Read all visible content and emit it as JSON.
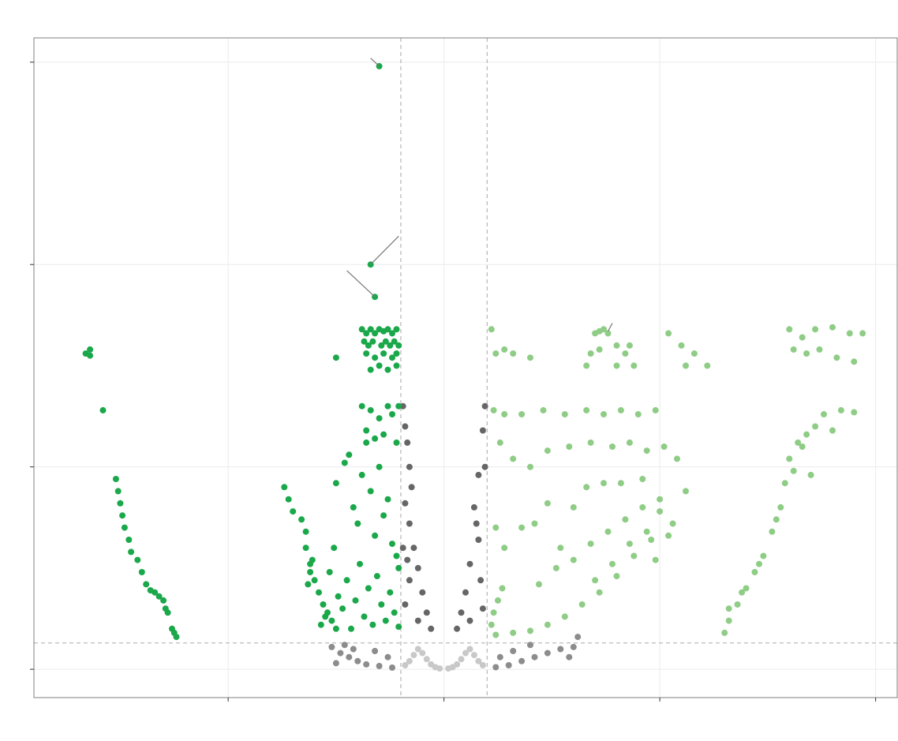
{
  "chart_data": {
    "type": "scatter",
    "title": "",
    "xlabel": "",
    "ylabel": "",
    "xlim": [
      -9.5,
      10.5
    ],
    "ylim": [
      -0.7,
      15.6
    ],
    "x_ticks": [
      -5,
      0,
      5,
      10
    ],
    "y_ticks": [
      0,
      5,
      10,
      15
    ],
    "grid": true,
    "legend": "none",
    "thresholds": {
      "x": [
        -1,
        1
      ],
      "y": 0.65
    },
    "colors": {
      "down_significant": "#1aa84a",
      "up_significant": "#8fcd86",
      "fold_only": "#666666",
      "p_only": "#8c8c8c",
      "not_significant": "#c8c8c8",
      "threshold_line": "#bbbbbb",
      "label_segment": "#777777",
      "grid": "#ebebeb",
      "panel_border": "#7f7f7f"
    },
    "series": [
      {
        "group": "down_significant",
        "points": [
          [
            -8.3,
            7.8
          ],
          [
            -8.2,
            7.9
          ],
          [
            -8.2,
            7.75
          ],
          [
            -7.9,
            6.4
          ],
          [
            -7.6,
            4.7
          ],
          [
            -7.55,
            4.4
          ],
          [
            -7.5,
            4.1
          ],
          [
            -7.45,
            3.8
          ],
          [
            -7.4,
            3.5
          ],
          [
            -7.3,
            3.2
          ],
          [
            -7.25,
            2.9
          ],
          [
            -7.1,
            2.7
          ],
          [
            -7.0,
            2.4
          ],
          [
            -6.9,
            2.1
          ],
          [
            -6.8,
            1.95
          ],
          [
            -6.7,
            1.9
          ],
          [
            -6.6,
            1.8
          ],
          [
            -6.5,
            1.7
          ],
          [
            -6.45,
            1.5
          ],
          [
            -6.4,
            1.4
          ],
          [
            -6.3,
            1.0
          ],
          [
            -6.25,
            0.9
          ],
          [
            -6.2,
            0.8
          ],
          [
            -3.7,
            4.5
          ],
          [
            -3.6,
            4.2
          ],
          [
            -3.5,
            3.9
          ],
          [
            -3.3,
            3.7
          ],
          [
            -3.2,
            3.4
          ],
          [
            -3.2,
            3.0
          ],
          [
            -3.1,
            2.6
          ],
          [
            -3.0,
            2.2
          ],
          [
            -2.9,
            1.9
          ],
          [
            -2.8,
            1.6
          ],
          [
            -2.7,
            1.4
          ],
          [
            -2.6,
            1.2
          ],
          [
            -2.5,
            1.0
          ],
          [
            -3.05,
            2.7
          ],
          [
            -3.1,
            2.4
          ],
          [
            -3.15,
            2.1
          ],
          [
            -2.85,
            1.1
          ],
          [
            -2.75,
            1.3
          ],
          [
            -2.65,
            2.4
          ],
          [
            -2.55,
            3.0
          ],
          [
            -2.45,
            1.8
          ],
          [
            -2.35,
            1.5
          ],
          [
            -2.25,
            2.2
          ],
          [
            -2.15,
            1.0
          ],
          [
            -2.05,
            1.7
          ],
          [
            -1.95,
            2.6
          ],
          [
            -1.85,
            1.3
          ],
          [
            -1.75,
            2.0
          ],
          [
            -1.65,
            1.1
          ],
          [
            -1.55,
            2.3
          ],
          [
            -1.45,
            1.6
          ],
          [
            -1.35,
            1.2
          ],
          [
            -1.25,
            1.9
          ],
          [
            -1.15,
            1.4
          ],
          [
            -1.05,
            1.05
          ],
          [
            -2.5,
            4.6
          ],
          [
            -2.3,
            5.1
          ],
          [
            -2.2,
            5.3
          ],
          [
            -2.1,
            4.0
          ],
          [
            -2.0,
            3.6
          ],
          [
            -1.9,
            4.8
          ],
          [
            -1.8,
            5.6
          ],
          [
            -1.7,
            4.4
          ],
          [
            -1.6,
            3.3
          ],
          [
            -1.5,
            5.0
          ],
          [
            -1.4,
            3.8
          ],
          [
            -1.3,
            4.2
          ],
          [
            -1.2,
            3.1
          ],
          [
            -1.1,
            2.8
          ],
          [
            -1.05,
            2.5
          ],
          [
            -1.9,
            6.5
          ],
          [
            -1.7,
            6.4
          ],
          [
            -1.5,
            6.2
          ],
          [
            -1.3,
            6.5
          ],
          [
            -1.2,
            6.3
          ],
          [
            -1.05,
            6.5
          ],
          [
            -1.8,
            5.9
          ],
          [
            -1.6,
            5.7
          ],
          [
            -1.4,
            5.8
          ],
          [
            -1.1,
            5.6
          ],
          [
            -2.5,
            7.7
          ],
          [
            -1.9,
            8.4
          ],
          [
            -1.8,
            8.3
          ],
          [
            -1.7,
            8.4
          ],
          [
            -1.6,
            8.3
          ],
          [
            -1.5,
            8.4
          ],
          [
            -1.4,
            8.35
          ],
          [
            -1.3,
            8.4
          ],
          [
            -1.2,
            8.3
          ],
          [
            -1.1,
            8.4
          ],
          [
            -1.85,
            8.1
          ],
          [
            -1.75,
            8.0
          ],
          [
            -1.65,
            8.1
          ],
          [
            -1.45,
            8.0
          ],
          [
            -1.35,
            8.1
          ],
          [
            -1.25,
            8.0
          ],
          [
            -1.15,
            8.1
          ],
          [
            -1.05,
            8.0
          ],
          [
            -1.8,
            7.8
          ],
          [
            -1.6,
            7.7
          ],
          [
            -1.4,
            7.8
          ],
          [
            -1.2,
            7.7
          ],
          [
            -1.1,
            7.8
          ],
          [
            -1.7,
            7.4
          ],
          [
            -1.5,
            7.5
          ],
          [
            -1.3,
            7.4
          ],
          [
            -1.1,
            7.5
          ],
          [
            -1.6,
            9.2
          ],
          [
            -1.7,
            10.0
          ],
          [
            -1.5,
            14.9
          ]
        ]
      },
      {
        "group": "up_significant",
        "points": [
          [
            1.1,
            8.4
          ],
          [
            1.2,
            7.8
          ],
          [
            1.4,
            7.9
          ],
          [
            1.6,
            7.8
          ],
          [
            2.0,
            7.7
          ],
          [
            3.5,
            8.3
          ],
          [
            3.6,
            8.35
          ],
          [
            3.7,
            8.4
          ],
          [
            3.8,
            8.3
          ],
          [
            4.0,
            8.0
          ],
          [
            3.4,
            7.8
          ],
          [
            3.6,
            7.9
          ],
          [
            4.2,
            7.8
          ],
          [
            4.3,
            8.0
          ],
          [
            4.0,
            7.5
          ],
          [
            4.4,
            7.5
          ],
          [
            3.3,
            7.5
          ],
          [
            5.2,
            8.3
          ],
          [
            5.5,
            8.0
          ],
          [
            5.8,
            7.8
          ],
          [
            5.6,
            7.5
          ],
          [
            6.1,
            7.5
          ],
          [
            8.0,
            8.4
          ],
          [
            8.3,
            8.2
          ],
          [
            8.6,
            8.4
          ],
          [
            9.0,
            8.45
          ],
          [
            9.4,
            8.3
          ],
          [
            9.7,
            8.3
          ],
          [
            8.1,
            7.9
          ],
          [
            8.4,
            7.8
          ],
          [
            8.7,
            7.9
          ],
          [
            9.1,
            7.7
          ],
          [
            9.5,
            7.6
          ],
          [
            1.15,
            6.4
          ],
          [
            1.4,
            6.3
          ],
          [
            1.8,
            6.3
          ],
          [
            2.3,
            6.4
          ],
          [
            2.8,
            6.3
          ],
          [
            3.3,
            6.4
          ],
          [
            3.7,
            6.3
          ],
          [
            4.1,
            6.4
          ],
          [
            4.5,
            6.3
          ],
          [
            4.9,
            6.4
          ],
          [
            1.3,
            5.6
          ],
          [
            1.6,
            5.2
          ],
          [
            2.0,
            5.0
          ],
          [
            2.4,
            5.4
          ],
          [
            2.9,
            5.5
          ],
          [
            3.4,
            5.6
          ],
          [
            3.9,
            5.5
          ],
          [
            4.3,
            5.6
          ],
          [
            4.7,
            5.4
          ],
          [
            5.1,
            5.5
          ],
          [
            5.4,
            5.2
          ],
          [
            1.2,
            3.5
          ],
          [
            1.4,
            3.0
          ],
          [
            1.8,
            3.5
          ],
          [
            2.1,
            3.6
          ],
          [
            2.4,
            4.1
          ],
          [
            2.7,
            3.0
          ],
          [
            3.0,
            4.0
          ],
          [
            3.3,
            4.5
          ],
          [
            3.7,
            4.6
          ],
          [
            4.1,
            4.6
          ],
          [
            4.6,
            4.7
          ],
          [
            5.0,
            4.2
          ],
          [
            5.3,
            3.6
          ],
          [
            5.6,
            4.4
          ],
          [
            4.8,
            3.2
          ],
          [
            4.4,
            2.8
          ],
          [
            4.0,
            2.3
          ],
          [
            3.6,
            1.9
          ],
          [
            3.2,
            1.6
          ],
          [
            2.8,
            1.3
          ],
          [
            2.4,
            1.1
          ],
          [
            2.0,
            0.95
          ],
          [
            1.6,
            0.9
          ],
          [
            1.2,
            0.85
          ],
          [
            1.1,
            1.1
          ],
          [
            1.15,
            1.4
          ],
          [
            1.25,
            1.7
          ],
          [
            1.35,
            2.0
          ],
          [
            2.2,
            2.1
          ],
          [
            2.6,
            2.5
          ],
          [
            3.0,
            2.7
          ],
          [
            3.4,
            3.1
          ],
          [
            3.8,
            3.4
          ],
          [
            4.2,
            3.7
          ],
          [
            4.6,
            4.0
          ],
          [
            5.0,
            3.9
          ],
          [
            3.5,
            2.2
          ],
          [
            3.9,
            2.6
          ],
          [
            4.3,
            3.1
          ],
          [
            4.7,
            3.4
          ],
          [
            5.2,
            3.3
          ],
          [
            4.9,
            2.7
          ],
          [
            6.5,
            0.9
          ],
          [
            6.6,
            1.2
          ],
          [
            6.8,
            1.6
          ],
          [
            7.0,
            2.0
          ],
          [
            7.2,
            2.4
          ],
          [
            7.4,
            2.8
          ],
          [
            7.6,
            3.4
          ],
          [
            7.8,
            4.0
          ],
          [
            7.9,
            4.6
          ],
          [
            8.0,
            5.2
          ],
          [
            8.2,
            5.6
          ],
          [
            8.4,
            5.8
          ],
          [
            8.6,
            6.0
          ],
          [
            8.8,
            6.3
          ],
          [
            9.2,
            6.4
          ],
          [
            9.5,
            6.35
          ],
          [
            8.1,
            4.9
          ],
          [
            8.3,
            5.5
          ],
          [
            6.6,
            1.5
          ],
          [
            6.9,
            1.9
          ],
          [
            7.3,
            2.6
          ],
          [
            7.7,
            3.7
          ],
          [
            8.5,
            4.8
          ],
          [
            9.0,
            5.9
          ]
        ]
      },
      {
        "group": "fold_only",
        "points": [
          [
            -0.95,
            6.5
          ],
          [
            -0.9,
            6.0
          ],
          [
            -0.85,
            5.6
          ],
          [
            -0.8,
            5.0
          ],
          [
            -0.75,
            4.5
          ],
          [
            -0.9,
            4.1
          ],
          [
            -0.8,
            3.6
          ],
          [
            -0.7,
            3.0
          ],
          [
            -0.6,
            2.5
          ],
          [
            -0.5,
            1.9
          ],
          [
            -0.4,
            1.4
          ],
          [
            -0.3,
            1.0
          ],
          [
            -0.8,
            2.2
          ],
          [
            -0.9,
            1.6
          ],
          [
            -0.6,
            1.2
          ],
          [
            -0.95,
            3.0
          ],
          [
            -0.85,
            2.7
          ],
          [
            0.95,
            6.5
          ],
          [
            0.9,
            5.9
          ],
          [
            0.95,
            5.0
          ],
          [
            0.8,
            4.8
          ],
          [
            0.7,
            4.0
          ],
          [
            0.75,
            3.6
          ],
          [
            0.8,
            3.2
          ],
          [
            0.6,
            2.6
          ],
          [
            0.5,
            1.9
          ],
          [
            0.4,
            1.4
          ],
          [
            0.3,
            1.0
          ],
          [
            0.85,
            2.2
          ],
          [
            0.9,
            1.5
          ],
          [
            0.6,
            1.2
          ]
        ]
      },
      {
        "group": "p_only",
        "points": [
          [
            -2.6,
            0.55
          ],
          [
            -2.4,
            0.4
          ],
          [
            -2.2,
            0.3
          ],
          [
            -2.0,
            0.2
          ],
          [
            -1.8,
            0.12
          ],
          [
            -1.5,
            0.08
          ],
          [
            -1.2,
            0.04
          ],
          [
            -2.5,
            0.15
          ],
          [
            -2.1,
            0.5
          ],
          [
            -1.6,
            0.45
          ],
          [
            -1.3,
            0.3
          ],
          [
            -2.3,
            0.6
          ],
          [
            1.2,
            0.05
          ],
          [
            1.5,
            0.1
          ],
          [
            1.8,
            0.2
          ],
          [
            2.1,
            0.3
          ],
          [
            2.4,
            0.4
          ],
          [
            2.7,
            0.5
          ],
          [
            3.0,
            0.55
          ],
          [
            2.0,
            0.6
          ],
          [
            1.6,
            0.45
          ],
          [
            1.3,
            0.3
          ],
          [
            3.1,
            0.8
          ],
          [
            2.9,
            0.3
          ]
        ]
      },
      {
        "group": "not_significant",
        "points": [
          [
            -0.9,
            0.1
          ],
          [
            -0.8,
            0.2
          ],
          [
            -0.7,
            0.35
          ],
          [
            -0.6,
            0.5
          ],
          [
            -0.5,
            0.4
          ],
          [
            -0.4,
            0.25
          ],
          [
            -0.3,
            0.12
          ],
          [
            -0.2,
            0.05
          ],
          [
            -0.1,
            0.02
          ],
          [
            0.1,
            0.02
          ],
          [
            0.2,
            0.05
          ],
          [
            0.3,
            0.12
          ],
          [
            0.4,
            0.25
          ],
          [
            0.5,
            0.4
          ],
          [
            0.6,
            0.5
          ],
          [
            0.7,
            0.35
          ],
          [
            0.8,
            0.2
          ],
          [
            0.9,
            0.1
          ]
        ]
      }
    ],
    "label_segments": [
      {
        "from": [
          -1.5,
          14.9
        ],
        "to": [
          -1.7,
          15.1
        ]
      },
      {
        "from": [
          -1.7,
          10.0
        ],
        "to": [
          -1.05,
          10.7
        ]
      },
      {
        "from": [
          -1.6,
          9.2
        ],
        "to": [
          -2.25,
          9.85
        ]
      },
      {
        "from": [
          3.8,
          8.35
        ],
        "to": [
          3.9,
          8.55
        ]
      }
    ]
  }
}
